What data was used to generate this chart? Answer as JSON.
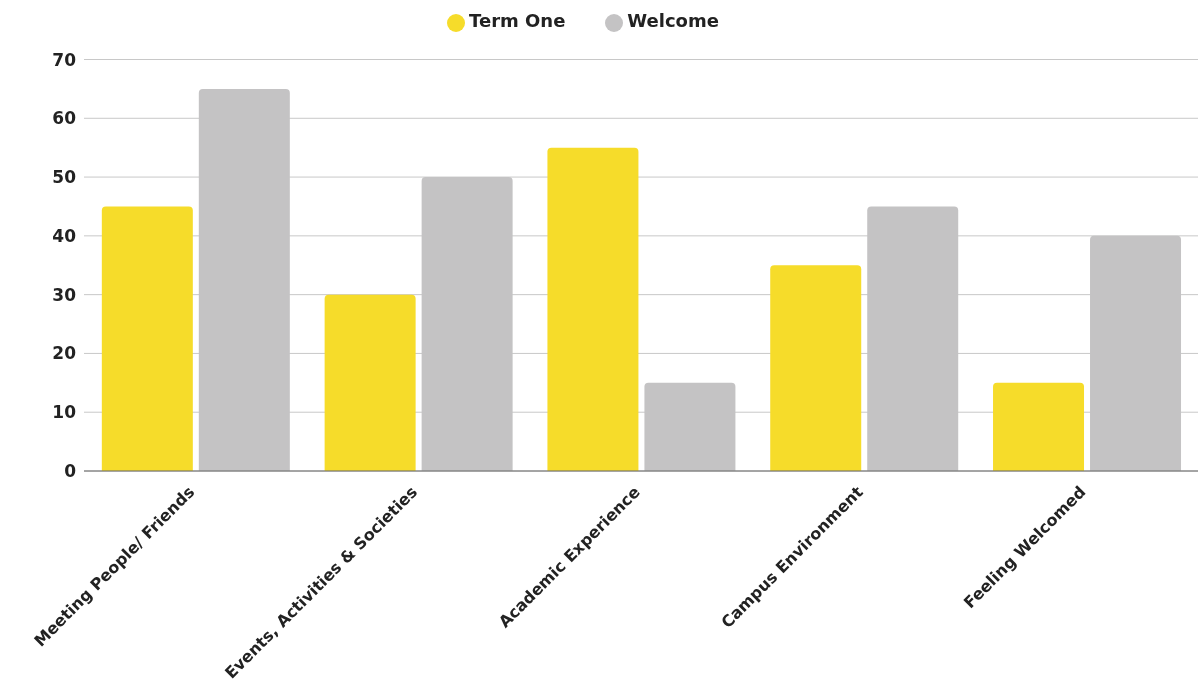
{
  "chart_data": {
    "type": "bar",
    "categories": [
      "Meeting People/ Friends",
      "Events, Activities & Societies",
      "Academic Experience",
      "Campus Environment",
      "Feeling Welcomed"
    ],
    "series": [
      {
        "name": "Term One",
        "color": "#f6dc2a",
        "values": [
          45,
          30,
          55,
          35,
          15
        ]
      },
      {
        "name": "Welcome",
        "color": "#c4c3c4",
        "values": [
          65,
          50,
          15,
          45,
          40
        ]
      }
    ],
    "ylim": [
      0,
      70
    ],
    "yticks": [
      0,
      10,
      20,
      30,
      40,
      50,
      60,
      70
    ],
    "grid": "y",
    "legend": "top"
  }
}
